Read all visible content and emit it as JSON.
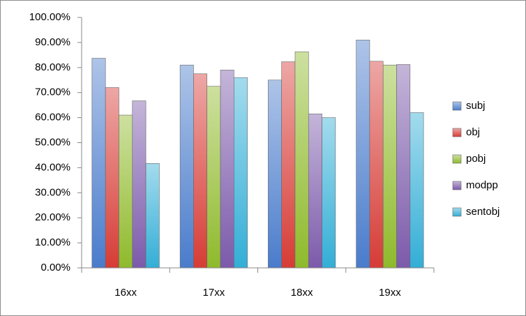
{
  "chart_data": {
    "type": "bar",
    "categories": [
      "16xx",
      "17xx",
      "18xx",
      "19xx"
    ],
    "series": [
      {
        "name": "subj",
        "color": "#4a7ccc",
        "values": [
          83.7,
          81,
          75,
          91
        ]
      },
      {
        "name": "obj",
        "color": "#d63c36",
        "values": [
          72,
          77.5,
          82.3,
          82.5
        ]
      },
      {
        "name": "pobj",
        "color": "#8fba2c",
        "values": [
          61,
          72.5,
          86.3,
          81
        ]
      },
      {
        "name": "modpp",
        "color": "#7c5aab",
        "values": [
          66.7,
          79,
          61.5,
          81.2
        ]
      },
      {
        "name": "sentobj",
        "color": "#33aed6",
        "values": [
          41.7,
          76,
          60,
          62
        ]
      }
    ],
    "ylim": [
      0,
      100
    ],
    "yticks": [
      {
        "value": 0,
        "label": "0.00%"
      },
      {
        "value": 10,
        "label": "10.00%"
      },
      {
        "value": 20,
        "label": "20.00%"
      },
      {
        "value": 30,
        "label": "30.00%"
      },
      {
        "value": 40,
        "label": "40.00%"
      },
      {
        "value": 50,
        "label": "50.00%"
      },
      {
        "value": 60,
        "label": "60.00%"
      },
      {
        "value": 70,
        "label": "70.00%"
      },
      {
        "value": 80,
        "label": "80.00%"
      },
      {
        "value": 90,
        "label": "90.00%"
      },
      {
        "value": 100,
        "label": "100.00%"
      }
    ],
    "grid": false,
    "legend": "right"
  }
}
